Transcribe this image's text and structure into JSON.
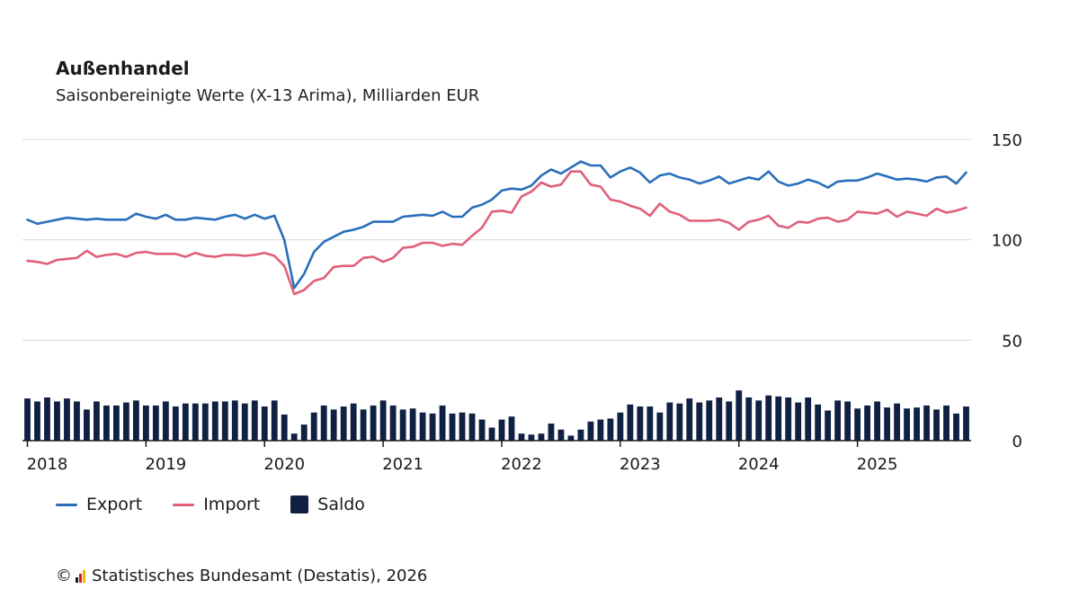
{
  "header": {
    "title": "Außenhandel",
    "subtitle": "Saisonbereinigte Werte (X-13 Arima), Milliarden EUR"
  },
  "legend": {
    "export_label": "Export",
    "import_label": "Import",
    "saldo_label": "Saldo"
  },
  "source": {
    "copyright_symbol": "©",
    "text": "Statistisches Bundesamt (Destatis), 2026"
  },
  "colors": {
    "export": "#2a6ebb",
    "import": "#e0607a",
    "saldo": "#0f2043",
    "grid": "#d9d9d9",
    "axis": "#1a1a1a"
  },
  "chart_data": {
    "type": "line",
    "title": "Außenhandel",
    "subtitle": "Saisonbereinigte Werte (X-13 Arima), Milliarden EUR",
    "x_start": "2018-01",
    "frequency": "monthly",
    "x_tick_labels": [
      "2018",
      "2019",
      "2020",
      "2021",
      "2022",
      "2023",
      "2024",
      "2025"
    ],
    "y_ticks": [
      0,
      50,
      100,
      150
    ],
    "ylim": [
      0,
      150
    ],
    "grid": true,
    "legend_position": "bottom-left",
    "series": [
      {
        "name": "Export",
        "type": "line",
        "values": [
          110,
          108,
          109,
          110,
          111,
          110.5,
          110,
          110.5,
          110,
          110,
          110,
          113,
          111.5,
          110.5,
          112.5,
          110,
          110,
          111,
          110.5,
          110,
          111.5,
          112.5,
          110.5,
          112.5,
          110.5,
          112,
          100,
          76,
          83,
          94,
          99,
          101.5,
          104,
          105,
          106.5,
          109,
          109,
          109,
          111.5,
          112,
          112.5,
          112,
          114,
          111.5,
          111.5,
          116,
          117.5,
          120,
          124.5,
          125.5,
          125,
          127,
          132,
          135,
          133,
          136,
          139,
          137,
          137,
          131,
          134,
          136,
          133.5,
          128.5,
          132,
          133,
          131,
          130,
          128,
          129.5,
          131.5,
          128,
          129.5,
          131,
          130,
          134,
          129,
          127,
          128,
          130,
          128.5,
          126,
          129,
          129.5,
          129.5,
          131,
          133,
          131.5,
          130,
          130.5,
          130,
          129,
          131,
          131.5,
          128,
          133.5
        ]
      },
      {
        "name": "Import",
        "type": "line",
        "values": [
          89.5,
          89,
          88,
          90,
          90.5,
          91,
          94.5,
          91.5,
          92.5,
          93,
          91.5,
          93.5,
          94,
          93,
          93,
          93,
          91.5,
          93.5,
          92,
          91.5,
          92.5,
          92.5,
          92,
          92.5,
          93.5,
          92,
          87,
          73,
          75,
          79.5,
          81,
          86.5,
          87,
          87,
          91,
          91.5,
          89,
          91,
          96,
          96.5,
          98.5,
          98.5,
          97,
          98,
          97.5,
          102,
          106,
          114,
          114.5,
          113.5,
          121.5,
          124,
          128.5,
          126.5,
          127.5,
          134,
          134,
          127.5,
          126.5,
          120,
          119,
          117,
          115.5,
          112,
          118,
          114,
          112.5,
          109.5,
          109.5,
          109.5,
          110,
          108.5,
          105,
          109,
          110,
          112,
          107,
          106,
          109,
          108.5,
          110.5,
          111,
          109,
          110,
          114,
          113.5,
          113,
          115,
          111.5,
          114,
          113,
          112,
          115.5,
          113.5,
          114.5,
          116
        ]
      },
      {
        "name": "Saldo",
        "type": "bar",
        "values": [
          21,
          19.5,
          21.5,
          19.5,
          21,
          19.5,
          15.5,
          19.5,
          17.5,
          17.5,
          19,
          20,
          17.5,
          17.5,
          19.5,
          17,
          18.5,
          18.5,
          18.5,
          19.5,
          19.5,
          20,
          18.5,
          20,
          17,
          20,
          13,
          3.5,
          8,
          14,
          17.5,
          15.5,
          17,
          18.5,
          15.5,
          17.5,
          20,
          17.5,
          15.5,
          16,
          14,
          13.5,
          17.5,
          13.5,
          14,
          13.5,
          10.5,
          6.5,
          10.5,
          12,
          3.5,
          3,
          3.5,
          8.5,
          5.5,
          2.5,
          5.5,
          9.5,
          10.5,
          11,
          14,
          18,
          17,
          17,
          14,
          19,
          18.5,
          21,
          19,
          20,
          21.5,
          19.5,
          25,
          21.5,
          20,
          22.5,
          22,
          21.5,
          19,
          21.5,
          18,
          15,
          20,
          19.5,
          16,
          17.5,
          19.5,
          16.5,
          18.5,
          16,
          16.5,
          17.5,
          15.5,
          17.5,
          13.5,
          17
        ]
      }
    ]
  }
}
